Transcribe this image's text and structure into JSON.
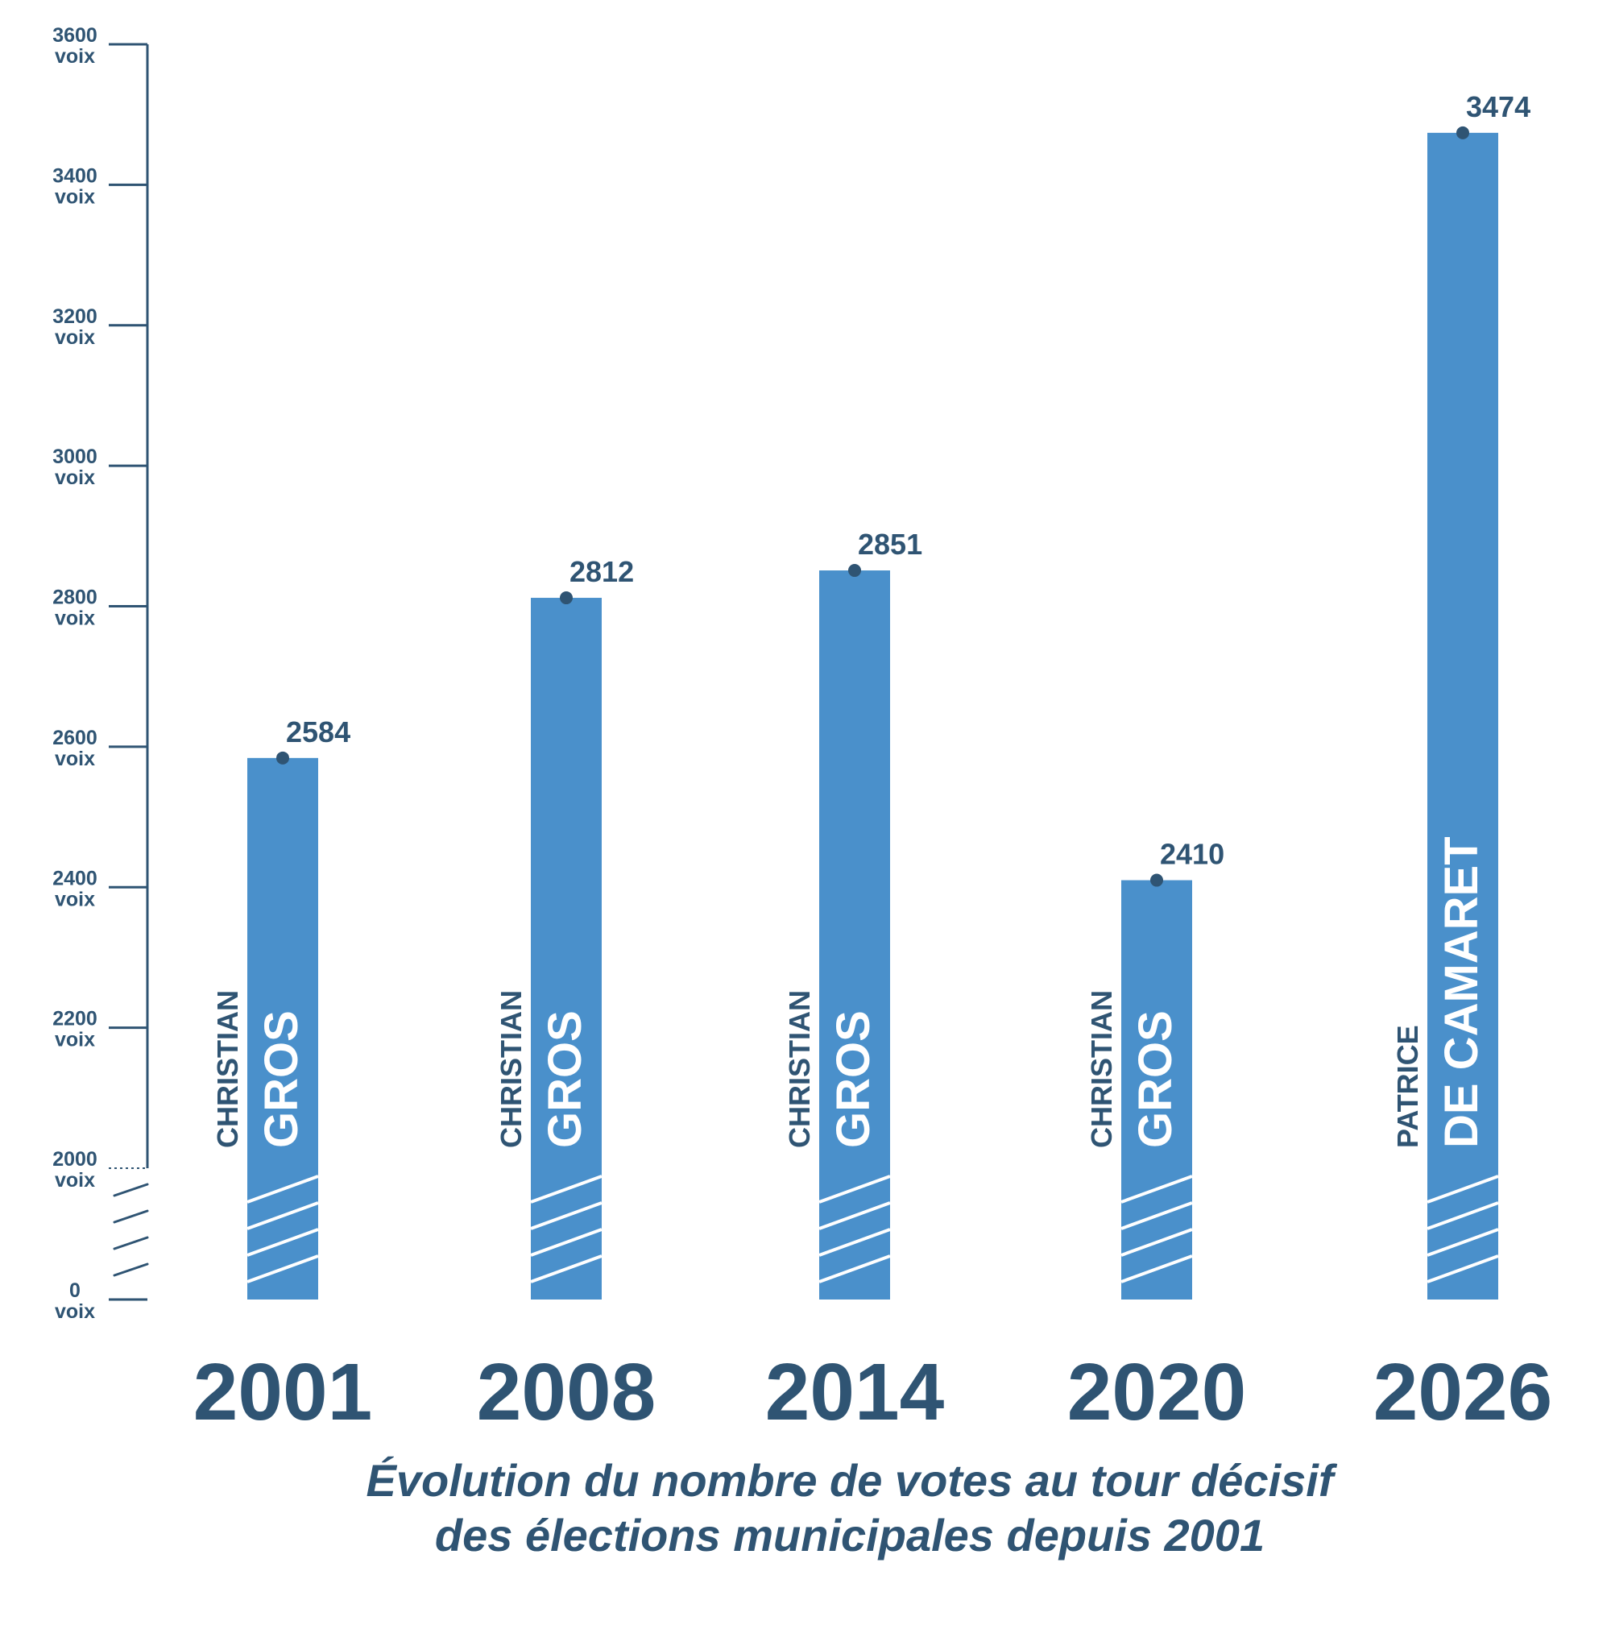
{
  "colors": {
    "bar": "#4a90cb",
    "ink": "#2f5473",
    "white": "#ffffff"
  },
  "chart_data": {
    "type": "bar",
    "title": [
      "Évolution du nombre de votes au tour décisif",
      "des élections municipales depuis 2001"
    ],
    "xlabel": "",
    "ylabel": "",
    "unit": "voix",
    "ylim": [
      0,
      3600
    ],
    "axis_break": [
      0,
      2000
    ],
    "yticks": [
      {
        "value": 3600,
        "label": "3600",
        "unit": "voix"
      },
      {
        "value": 3400,
        "label": "3400",
        "unit": "voix"
      },
      {
        "value": 3200,
        "label": "3200",
        "unit": "voix"
      },
      {
        "value": 3000,
        "label": "3000",
        "unit": "voix"
      },
      {
        "value": 2800,
        "label": "2800",
        "unit": "voix"
      },
      {
        "value": 2600,
        "label": "2600",
        "unit": "voix"
      },
      {
        "value": 2400,
        "label": "2400",
        "unit": "voix"
      },
      {
        "value": 2200,
        "label": "2200",
        "unit": "voix"
      },
      {
        "value": 2000,
        "label": "2000",
        "unit": "voix"
      },
      {
        "value": 0,
        "label": "0",
        "unit": "voix"
      }
    ],
    "categories": [
      "2001",
      "2008",
      "2014",
      "2020",
      "2026"
    ],
    "values": [
      2584,
      2812,
      2851,
      2410,
      3474
    ],
    "value_labels": [
      "2584",
      "2812",
      "2851",
      "2410",
      "3474"
    ],
    "candidates": [
      {
        "first": "CHRISTIAN",
        "last": "GROS"
      },
      {
        "first": "CHRISTIAN",
        "last": "GROS"
      },
      {
        "first": "CHRISTIAN",
        "last": "GROS"
      },
      {
        "first": "CHRISTIAN",
        "last": "GROS"
      },
      {
        "first": "PATRICE",
        "last": "DE CAMARET"
      }
    ]
  }
}
